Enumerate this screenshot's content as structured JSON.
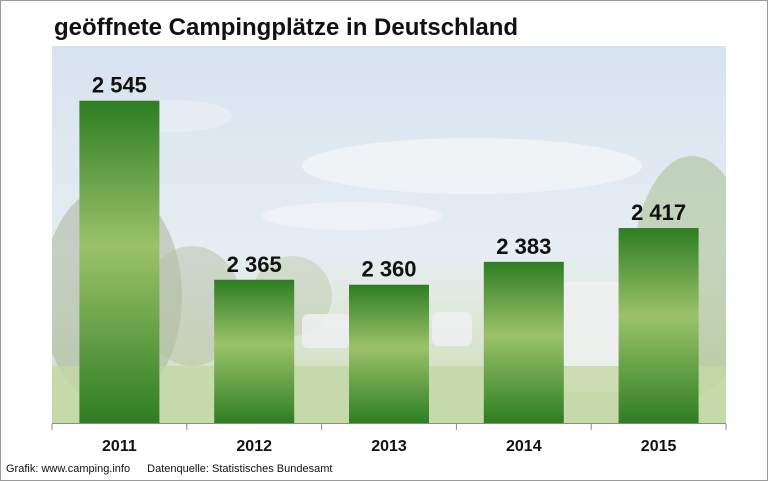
{
  "chart_data": {
    "type": "bar",
    "title": "geöffnete Campingplätze in Deutschland",
    "categories": [
      "2011",
      "2012",
      "2013",
      "2014",
      "2015"
    ],
    "values": [
      2545,
      2365,
      2360,
      2383,
      2417
    ],
    "value_labels": [
      "2 545",
      "2 365",
      "2 360",
      "2 383",
      "2 417"
    ],
    "xlabel": "",
    "ylabel": "",
    "ylim": [
      2220,
      2600
    ],
    "grid": false,
    "legend": "none",
    "bar_color_light": "#9bc26a",
    "bar_color_dark": "#2e7d22"
  },
  "footer": {
    "credit": "Grafik: www.camping.info",
    "source": "Datenquelle: Statistisches Bundesamt"
  }
}
